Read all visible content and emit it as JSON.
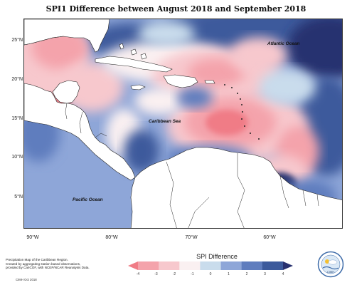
{
  "title": "SPI1 Difference between August 2018 and September 2018",
  "axes": {
    "y_labels": [
      "25°N",
      "20°N",
      "15°N",
      "10°N",
      "5°N"
    ],
    "x_labels": [
      "90°W",
      "80°W",
      "70°W",
      "60°W"
    ]
  },
  "places": {
    "atlantic": "Atlantic Ocean",
    "caribbean": "Caribbean Sea",
    "pacific": "Pacific Ocean"
  },
  "legend": {
    "title": "SPI Difference",
    "labels": [
      "-4",
      "-3",
      "-2",
      "-1",
      "0",
      "1",
      "2",
      "3",
      "4"
    ],
    "colors": [
      "#f07c86",
      "#f4a3ab",
      "#f7c8cd",
      "#faf0f1",
      "#c9dcec",
      "#8ea6d8",
      "#5f7dbe",
      "#3c5a9c",
      "#27306f"
    ]
  },
  "credits": {
    "line1": "Precipitation Map of the Caribbean Region.",
    "line2": "Created by aggregating station based observations,",
    "line3": "provided by CariCOF, with NCEP/NCAR Reanalysis Data.",
    "date": "CIMH Oct 2018"
  },
  "logo": {
    "text": "CIMH"
  }
}
